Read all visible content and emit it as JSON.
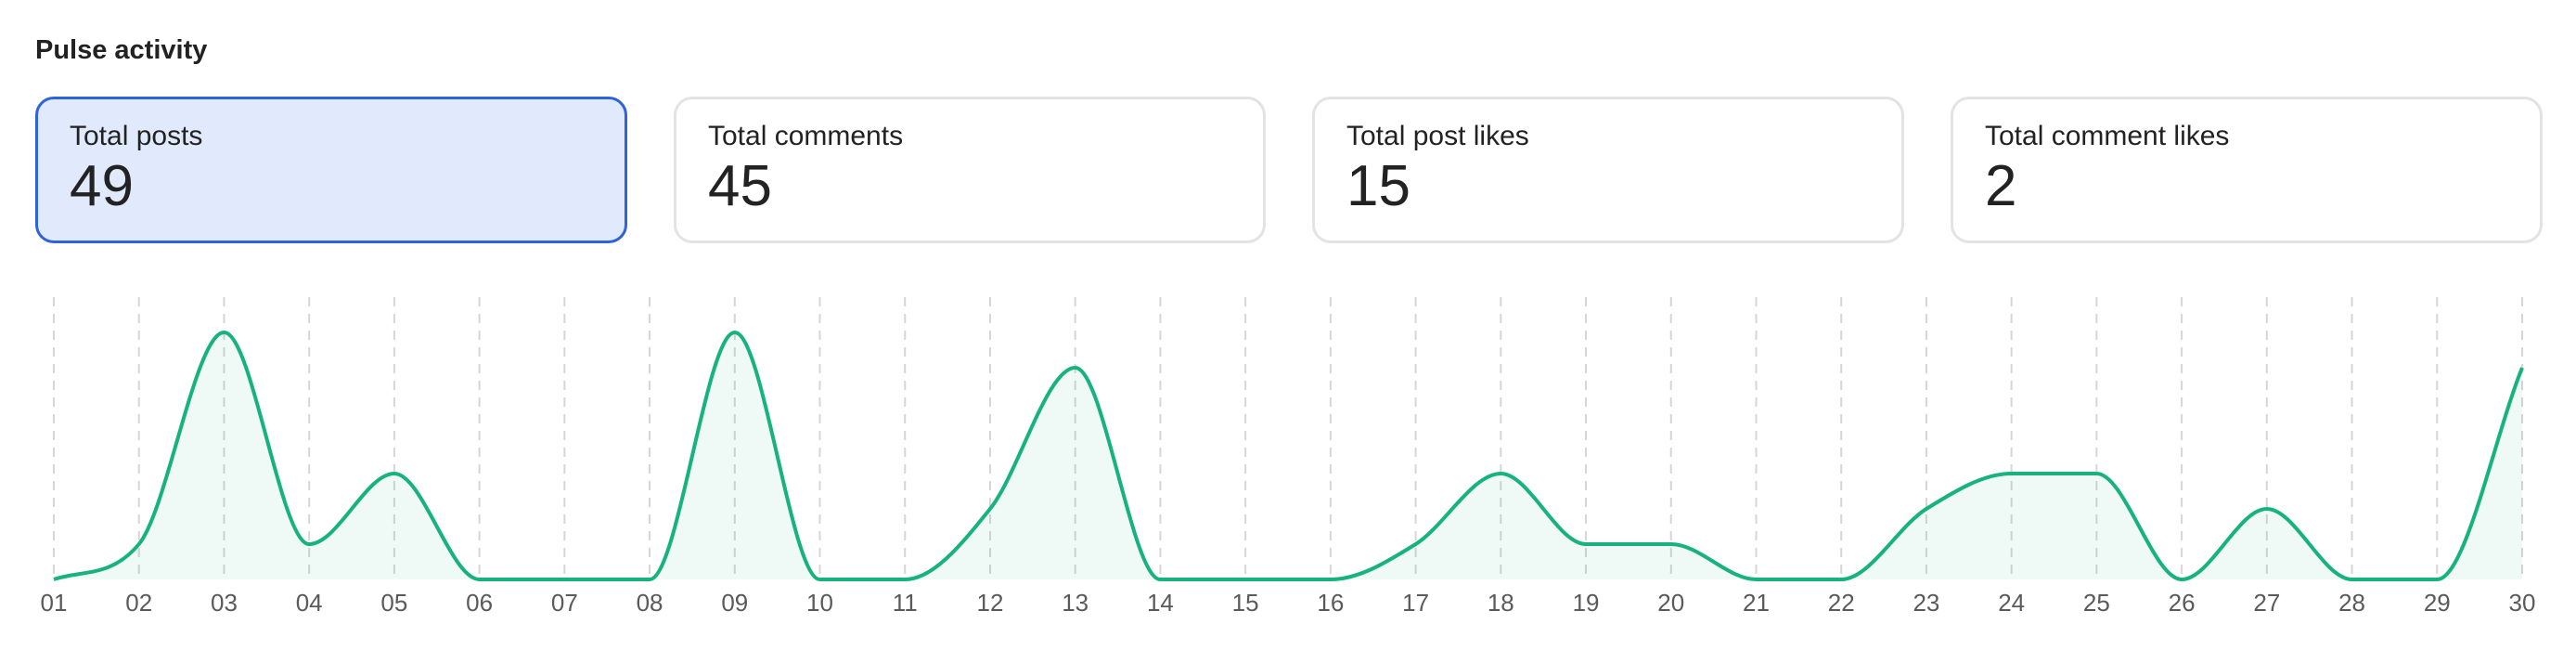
{
  "section_title": "Pulse activity",
  "cards": [
    {
      "label": "Total posts",
      "value": "49",
      "active": true
    },
    {
      "label": "Total comments",
      "value": "45",
      "active": false
    },
    {
      "label": "Total post likes",
      "value": "15",
      "active": false
    },
    {
      "label": "Total comment likes",
      "value": "2",
      "active": false
    }
  ],
  "colors": {
    "line": "#17b27e",
    "fill": "#17b27e",
    "grid": "#d6d6d6",
    "active_card_bg": "#e1e9fd",
    "active_card_border": "#2e63d9"
  },
  "chart_data": {
    "type": "area",
    "title": "",
    "xlabel": "",
    "ylabel": "",
    "categories": [
      "01",
      "02",
      "03",
      "04",
      "05",
      "06",
      "07",
      "08",
      "09",
      "10",
      "11",
      "12",
      "13",
      "14",
      "15",
      "16",
      "17",
      "18",
      "19",
      "20",
      "21",
      "22",
      "23",
      "24",
      "25",
      "26",
      "27",
      "28",
      "29",
      "30"
    ],
    "series": [
      {
        "name": "Total posts",
        "values": [
          0,
          1,
          7,
          1,
          3,
          0,
          0,
          0,
          7,
          0,
          0,
          2,
          6,
          0,
          0,
          0,
          1,
          3,
          1,
          1,
          0,
          0,
          2,
          3,
          3,
          0,
          2,
          0,
          0,
          6
        ]
      }
    ],
    "ylim": [
      0,
      7
    ],
    "grid": "vertical-dashed",
    "legend": "none"
  }
}
